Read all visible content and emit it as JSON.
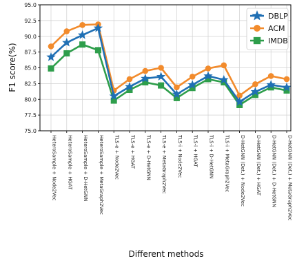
{
  "chart_data": {
    "type": "line",
    "title": "",
    "xlabel": "Different methods",
    "ylabel": "F1 score(%)",
    "ylim": [
      75.0,
      95.0
    ],
    "yticks": [
      "75.0",
      "77.5",
      "80.0",
      "82.5",
      "85.0",
      "87.5",
      "90.0",
      "92.5",
      "95.0"
    ],
    "grid": true,
    "legend_position": "top-right",
    "categories": [
      "HeteroSample + Node2Vec",
      "HeteroSample + HGAT",
      "HeteroSample + D-HetGNN",
      "HeteroSample + MetaGraph2Vec",
      "TLS-e + Node2Vec",
      "TLS-e + HGAT",
      "TLS-e + D-HetGNN",
      "TLS-e + MetaGraph2Vec",
      "TLS-i + Node2Vec",
      "TLS-i + HGAT",
      "TLS-i + D-HetGNN",
      "TLS-i + MetaGraph2Vec",
      "D-HetGNN (Det.) + Node2Vec",
      "D-HetGNN (Det.) + HGAT",
      "D-HetGNN (Det.) + D-HetGNN",
      "D-HetGNN (Det.) + MetaGraph2Vec"
    ],
    "series": [
      {
        "name": "DBLP",
        "color": "#1f6fb4",
        "marker": "star",
        "values": [
          86.7,
          89.0,
          90.2,
          91.3,
          80.5,
          82.0,
          83.3,
          83.6,
          80.8,
          82.3,
          83.7,
          83.1,
          79.6,
          81.2,
          82.3,
          81.9
        ]
      },
      {
        "name": "ACM",
        "color": "#f28b2c",
        "marker": "circle",
        "values": [
          88.4,
          90.8,
          91.8,
          91.9,
          81.4,
          83.2,
          84.5,
          85.0,
          81.9,
          83.6,
          84.9,
          85.4,
          80.6,
          82.4,
          83.7,
          83.2
        ]
      },
      {
        "name": "IMDB",
        "color": "#2e9e4b",
        "marker": "square",
        "values": [
          84.9,
          87.3,
          88.7,
          87.8,
          79.8,
          81.5,
          82.7,
          82.2,
          80.2,
          81.8,
          83.2,
          82.7,
          79.1,
          80.7,
          81.9,
          81.4
        ]
      }
    ]
  }
}
